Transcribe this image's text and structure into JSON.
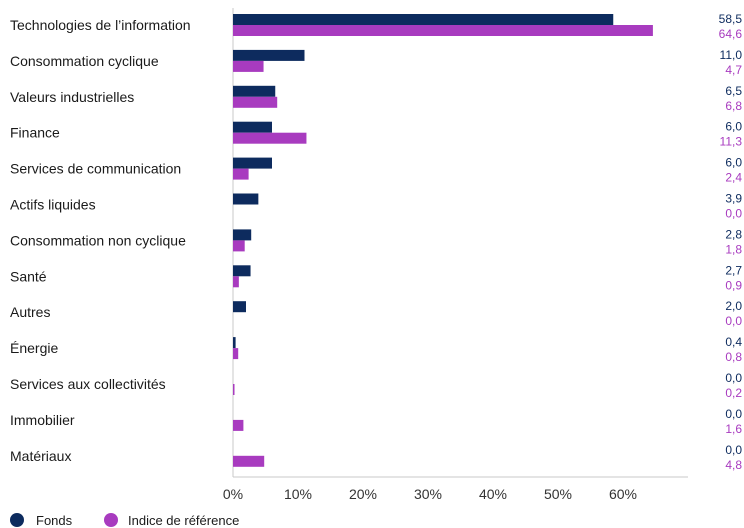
{
  "chart_data": {
    "type": "bar",
    "orientation": "horizontal",
    "categories": [
      "Technologies de l’information",
      "Consommation cyclique",
      "Valeurs industrielles",
      "Finance",
      "Services de communication",
      "Actifs liquides",
      "Consommation non cyclique",
      "Santé",
      "Autres",
      "Énergie",
      "Services aux collectivités",
      "Immobilier",
      "Matériaux"
    ],
    "series": [
      {
        "name": "Fonds",
        "color": "#0d2b5e",
        "values": [
          58.5,
          11.0,
          6.5,
          6.0,
          6.0,
          3.9,
          2.8,
          2.7,
          2.0,
          0.4,
          0.0,
          0.0,
          0.0
        ],
        "labels": [
          "58,5",
          "11,0",
          "6,5",
          "6,0",
          "6,0",
          "3,9",
          "2,8",
          "2,7",
          "2,0",
          "0,4",
          "0,0",
          "0,0",
          "0,0"
        ]
      },
      {
        "name": "Indice de référence",
        "color": "#a83bbf",
        "values": [
          64.6,
          4.7,
          6.8,
          11.3,
          2.4,
          0.0,
          1.8,
          0.9,
          0.0,
          0.8,
          0.2,
          1.6,
          4.8
        ],
        "labels": [
          "64,6",
          "4,7",
          "6,8",
          "11,3",
          "2,4",
          "0,0",
          "1,8",
          "0,9",
          "0,0",
          "0,8",
          "0,2",
          "1,6",
          "4,8"
        ]
      }
    ],
    "xticks": [
      0,
      10,
      20,
      30,
      40,
      50,
      60
    ],
    "xtick_labels": [
      "0%",
      "10%",
      "20%",
      "30%",
      "40%",
      "50%",
      "60%"
    ],
    "xlim": [
      0,
      70
    ],
    "grid": false,
    "legend_position": "bottom-left"
  },
  "colors": {
    "axis": "#c8c8c8",
    "text": "#1a1a1a"
  }
}
